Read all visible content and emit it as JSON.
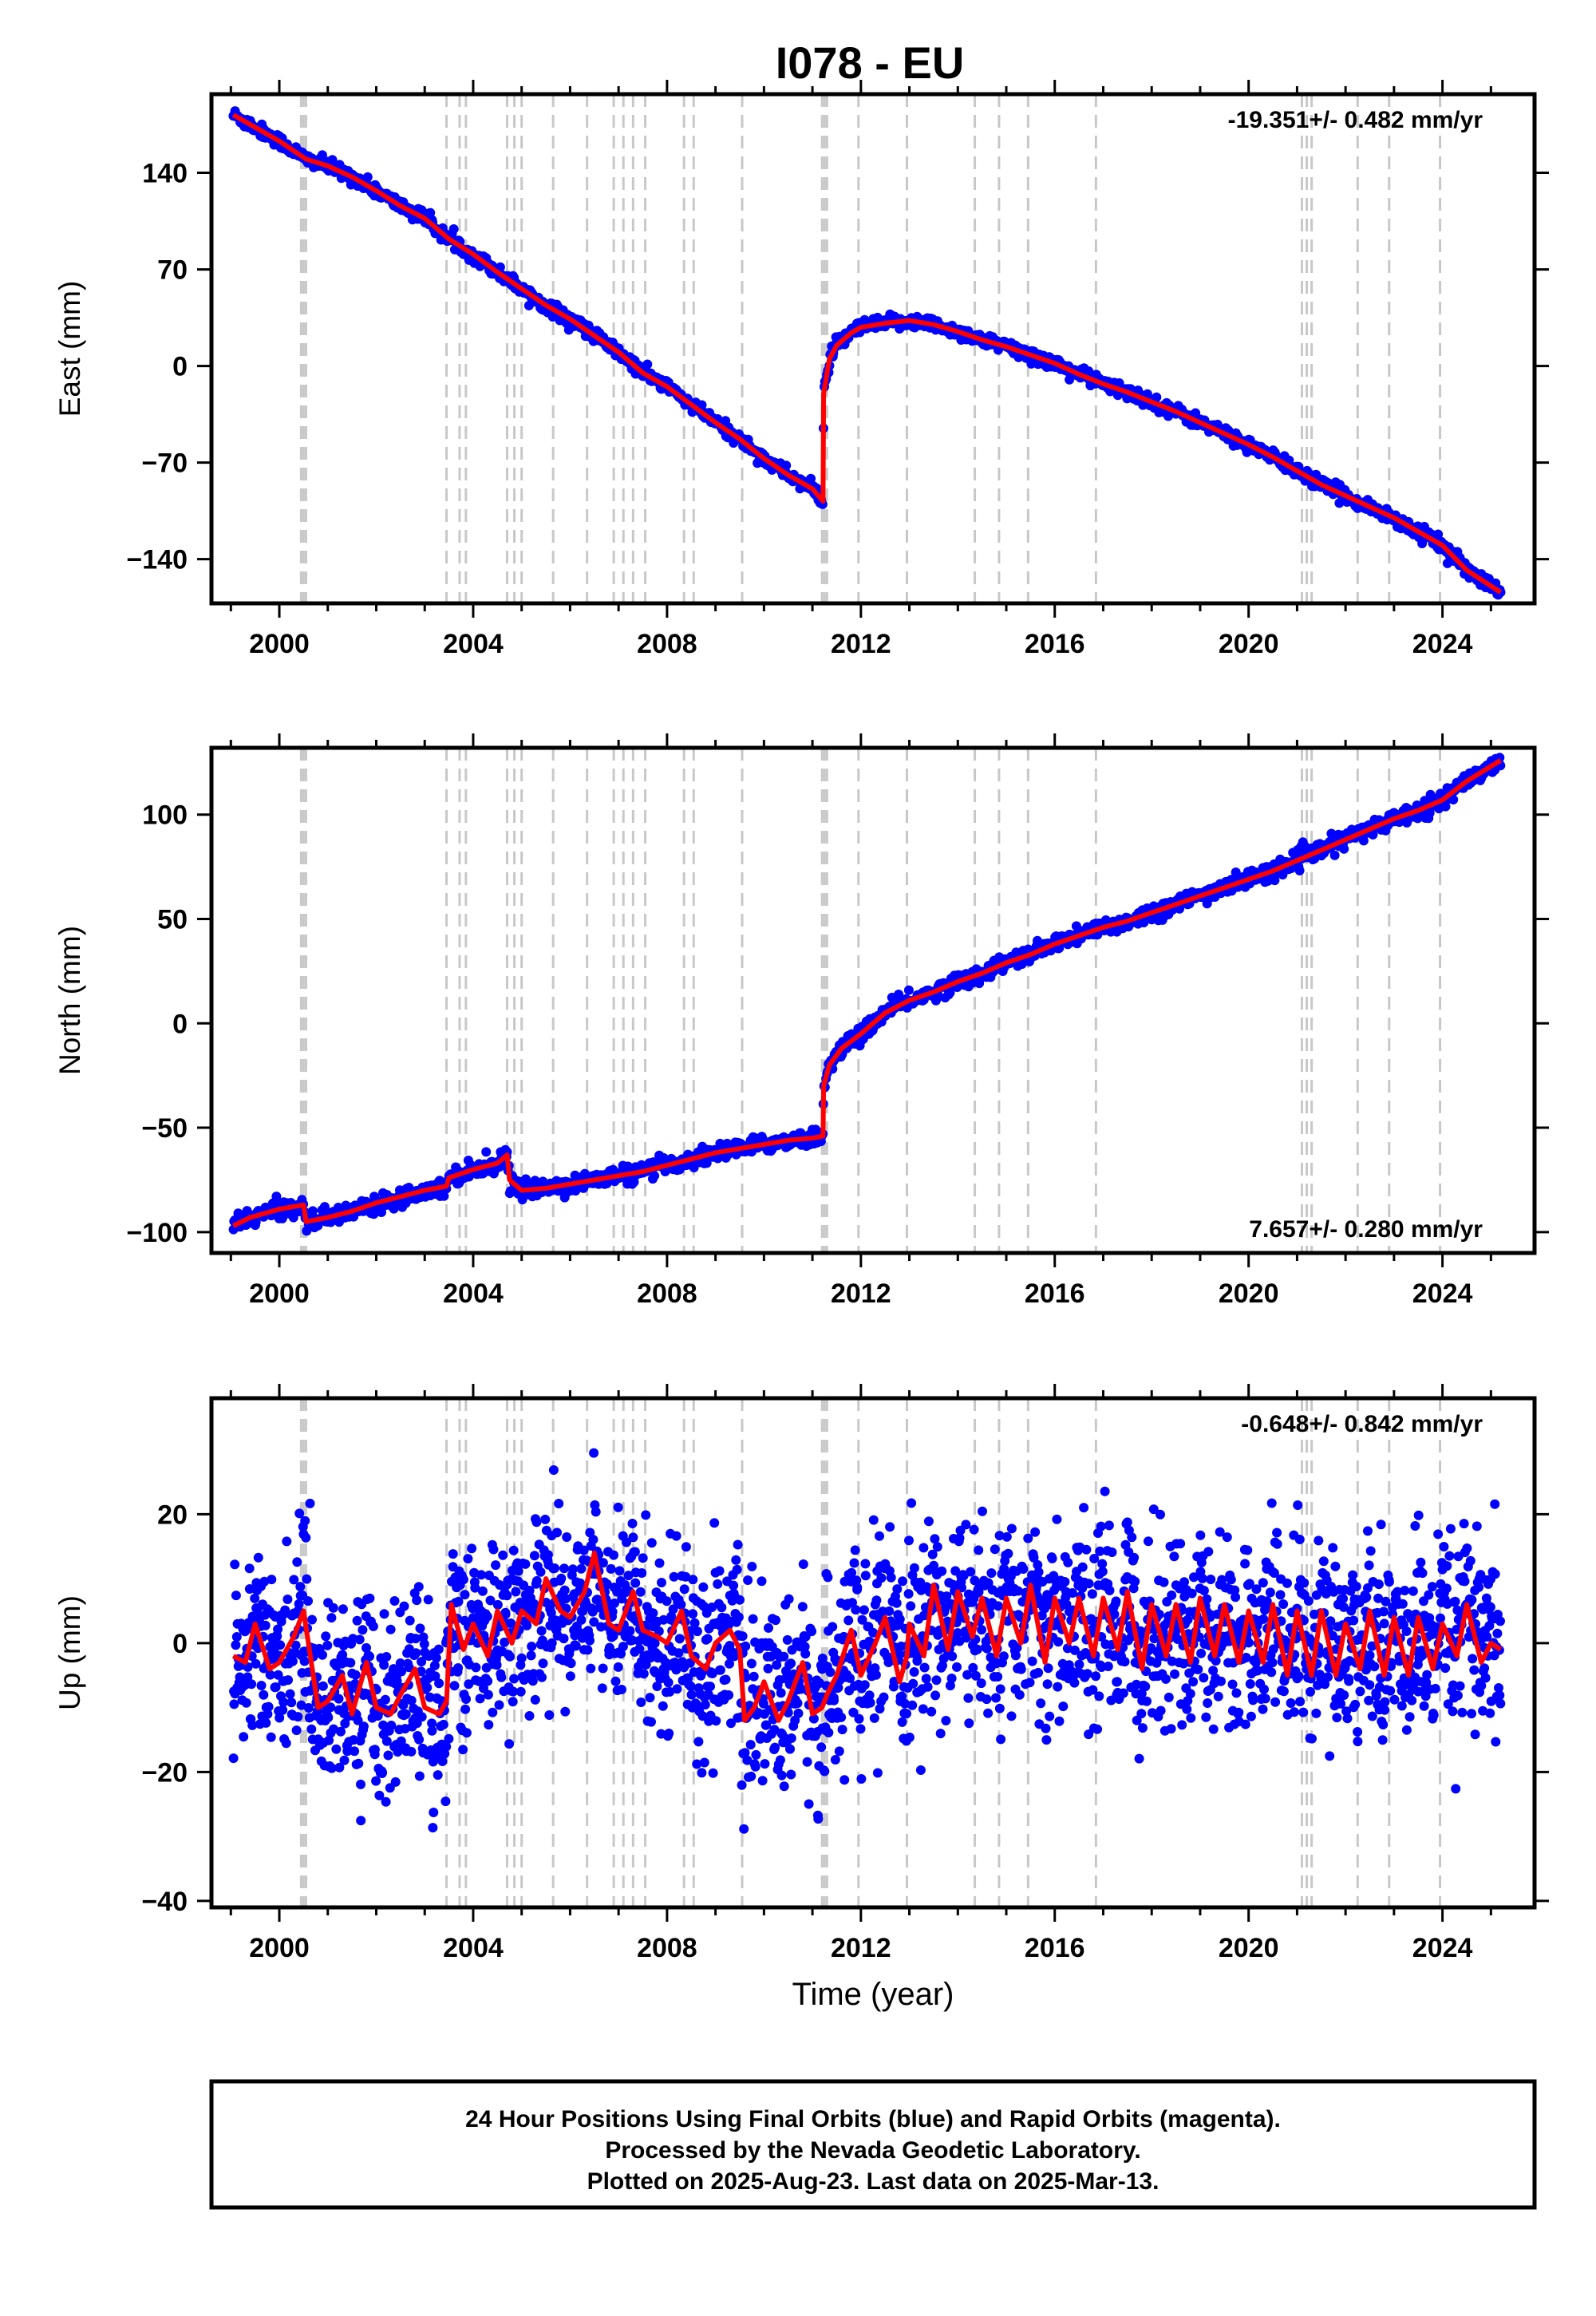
{
  "title": "I078 - EU",
  "colors": {
    "final": "#0000ff",
    "model": "#ff0000",
    "breaks": "#c8c8c8",
    "frame": "#000000"
  },
  "x_axis": {
    "label": "Time (year)",
    "ticks": [
      2000,
      2004,
      2008,
      2012,
      2016,
      2020,
      2024
    ],
    "range": [
      1998.6,
      2025.9
    ]
  },
  "break_years": [
    2000.45,
    2000.5,
    2000.55,
    2003.45,
    2003.72,
    2003.85,
    2004.7,
    2004.85,
    2005.0,
    2005.65,
    2006.35,
    2006.9,
    2007.1,
    2007.3,
    2007.55,
    2008.35,
    2008.55,
    2009.55,
    2011.2,
    2011.25,
    2011.3,
    2011.95,
    2012.95,
    2014.35,
    2014.85,
    2015.45,
    2016.85,
    2021.1,
    2021.2,
    2021.3,
    2022.25,
    2022.9,
    2023.95
  ],
  "footer": {
    "line1": "24 Hour Positions Using Final Orbits (blue) and Rapid Orbits (magenta).",
    "line2": "Processed by the Nevada Geodetic Laboratory.",
    "line3": "Plotted on 2025-Aug-23. Last data on 2025-Mar-13."
  },
  "chart_data": [
    {
      "type": "scatter",
      "component": "east",
      "ylabel": "East (mm)",
      "ylim": [
        -172,
        197
      ],
      "yticks": [
        -140,
        -70,
        0,
        70,
        140
      ],
      "rate_label": "-19.351+/- 0.482 mm/yr",
      "rate_position": "top-right",
      "data_span": [
        1999.05,
        2025.2
      ],
      "scatter_mm": 2.5,
      "series": [
        {
          "name": "model",
          "x": [
            1999.05,
            1999.5,
            2000.0,
            2000.55,
            2001.0,
            2001.5,
            2002.0,
            2002.5,
            2003.0,
            2003.5,
            2004.0,
            2004.5,
            2005.0,
            2005.5,
            2006.0,
            2006.5,
            2007.0,
            2007.5,
            2008.0,
            2008.5,
            2009.0,
            2009.5,
            2010.0,
            2010.5,
            2011.0,
            2011.22,
            2011.23,
            2011.35,
            2011.5,
            2011.8,
            2012.0,
            2012.5,
            2013.0,
            2013.5,
            2014.0,
            2014.5,
            2015.0,
            2015.5,
            2016.0,
            2016.5,
            2017.0,
            2017.5,
            2018.0,
            2018.5,
            2019.0,
            2019.5,
            2020.0,
            2020.5,
            2021.0,
            2021.5,
            2022.0,
            2022.5,
            2023.0,
            2023.5,
            2024.0,
            2024.5,
            2025.2
          ],
          "values": [
            182,
            173,
            163,
            150,
            145,
            137,
            127,
            116,
            107,
            92,
            81,
            68,
            56,
            44,
            34,
            22,
            10,
            -5,
            -15,
            -28,
            -41,
            -53,
            -67,
            -79,
            -89,
            -98,
            -20,
            5,
            15,
            24,
            28,
            31,
            33,
            30,
            25,
            19,
            14,
            8,
            2,
            -6,
            -13,
            -19,
            -26,
            -33,
            -41,
            -49,
            -57,
            -66,
            -76,
            -86,
            -94,
            -102,
            -110,
            -120,
            -130,
            -148,
            -164
          ]
        }
      ]
    },
    {
      "type": "scatter",
      "component": "north",
      "ylabel": "North (mm)",
      "ylim": [
        -110,
        132
      ],
      "yticks": [
        -100,
        -50,
        0,
        50,
        100
      ],
      "rate_label": "7.657+/- 0.280 mm/yr",
      "rate_position": "bottom-right",
      "data_span": [
        1999.05,
        2025.2
      ],
      "scatter_mm": 2.0,
      "series": [
        {
          "name": "model",
          "x": [
            1999.05,
            1999.4,
            2000.0,
            2000.5,
            2000.55,
            2001.0,
            2001.5,
            2002.0,
            2002.5,
            2003.0,
            2003.45,
            2003.5,
            2004.0,
            2004.5,
            2004.7,
            2004.75,
            2005.0,
            2005.5,
            2006.0,
            2006.5,
            2007.0,
            2007.5,
            2008.0,
            2008.5,
            2009.0,
            2009.5,
            2010.0,
            2010.5,
            2011.0,
            2011.22,
            2011.23,
            2011.35,
            2011.6,
            2012.0,
            2012.5,
            2013.0,
            2013.5,
            2014.0,
            2014.5,
            2015.0,
            2015.5,
            2016.0,
            2016.5,
            2017.0,
            2017.5,
            2018.0,
            2018.5,
            2019.0,
            2019.5,
            2020.0,
            2020.5,
            2021.0,
            2021.5,
            2022.0,
            2022.5,
            2023.0,
            2023.5,
            2024.0,
            2024.5,
            2025.2
          ],
          "values": [
            -97,
            -93,
            -89,
            -87,
            -95,
            -93,
            -90,
            -86,
            -83,
            -80,
            -78,
            -74,
            -70,
            -67,
            -63,
            -75,
            -80,
            -79,
            -77,
            -75,
            -73,
            -71,
            -68,
            -65,
            -62,
            -60,
            -58,
            -56,
            -55,
            -54,
            -30,
            -20,
            -12,
            -5,
            5,
            11,
            15,
            20,
            24,
            29,
            33,
            38,
            42,
            46,
            49,
            53,
            57,
            61,
            65,
            69,
            73,
            78,
            83,
            88,
            93,
            98,
            102,
            107,
            116,
            126
          ]
        }
      ]
    },
    {
      "type": "scatter",
      "component": "up",
      "ylabel": "Up (mm)",
      "ylim": [
        -41,
        38
      ],
      "yticks": [
        -40,
        -20,
        0,
        20
      ],
      "rate_label": "-0.648+/- 0.842 mm/yr",
      "rate_position": "top-right",
      "data_span": [
        1999.05,
        2025.2
      ],
      "scatter_mm": 7,
      "series": [
        {
          "name": "model",
          "x": [
            1999.05,
            1999.3,
            1999.5,
            1999.8,
            2000.0,
            2000.3,
            2000.5,
            2000.8,
            2001.0,
            2001.3,
            2001.5,
            2001.8,
            2002.0,
            2002.3,
            2002.5,
            2002.8,
            2003.0,
            2003.3,
            2003.45,
            2003.55,
            2003.8,
            2004.0,
            2004.3,
            2004.5,
            2004.8,
            2005.0,
            2005.3,
            2005.5,
            2005.8,
            2006.0,
            2006.3,
            2006.5,
            2006.8,
            2007.0,
            2007.3,
            2007.5,
            2007.8,
            2008.0,
            2008.3,
            2008.5,
            2008.8,
            2009.0,
            2009.3,
            2009.5,
            2009.6,
            2009.8,
            2010.0,
            2010.3,
            2010.5,
            2010.8,
            2011.0,
            2011.2,
            2011.3,
            2011.5,
            2011.8,
            2012.0,
            2012.3,
            2012.5,
            2012.8,
            2012.95,
            2013.0,
            2013.3,
            2013.5,
            2013.8,
            2014.0,
            2014.3,
            2014.5,
            2014.8,
            2015.0,
            2015.3,
            2015.5,
            2015.8,
            2016.0,
            2016.3,
            2016.5,
            2016.8,
            2017.0,
            2017.3,
            2017.5,
            2017.8,
            2018.0,
            2018.3,
            2018.5,
            2018.8,
            2019.0,
            2019.3,
            2019.5,
            2019.8,
            2020.0,
            2020.3,
            2020.5,
            2020.8,
            2021.0,
            2021.3,
            2021.5,
            2021.8,
            2022.0,
            2022.3,
            2022.5,
            2022.8,
            2023.0,
            2023.3,
            2023.5,
            2023.8,
            2024.0,
            2024.3,
            2024.5,
            2024.8,
            2025.0,
            2025.2
          ],
          "values": [
            -2,
            -3,
            3,
            -4,
            -3,
            1,
            5,
            -10,
            -9,
            -5,
            -11,
            -3,
            -10,
            -11,
            -8,
            -4,
            -10,
            -11,
            -9,
            6,
            -1,
            3,
            -2,
            5,
            0,
            5,
            3,
            10,
            5,
            4,
            8,
            14,
            3,
            2,
            8,
            2,
            1,
            0,
            5,
            -2,
            -4,
            0,
            2,
            -1,
            -12,
            -10,
            -6,
            -12,
            -9,
            -3,
            -11,
            -10,
            -8,
            -5,
            2,
            -5,
            0,
            4,
            -6,
            -2,
            3,
            -2,
            9,
            -1,
            8,
            1,
            7,
            -2,
            7,
            0,
            9,
            -3,
            7,
            0,
            7,
            -2,
            7,
            -1,
            8,
            -4,
            6,
            -2,
            6,
            -3,
            7,
            -2,
            6,
            -3,
            5,
            -3,
            6,
            -5,
            5,
            -5,
            5,
            -5,
            3,
            -4,
            5,
            -5,
            4,
            -5,
            4,
            -4,
            3,
            -2,
            6,
            -3,
            0,
            -1
          ]
        }
      ]
    }
  ]
}
